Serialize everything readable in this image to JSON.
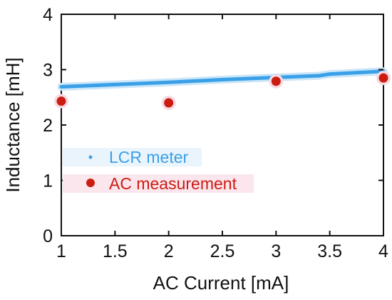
{
  "chart_data": {
    "type": "scatter",
    "xlabel": "AC Current [mA]",
    "ylabel": "Inductance [mH]",
    "xlim": [
      1,
      4
    ],
    "ylim": [
      0,
      4
    ],
    "xticks": [
      "1",
      "1.5",
      "2",
      "2.5",
      "3",
      "3.5",
      "4"
    ],
    "yticks": [
      "0",
      "1",
      "2",
      "3",
      "4"
    ],
    "grid": false,
    "legend_position": "center-left",
    "series": [
      {
        "name": "LCR meter",
        "marker": "line-of-points",
        "color": "#3aa0e8",
        "x": [
          1.0,
          1.5,
          2.0,
          2.5,
          3.0,
          3.4,
          3.5,
          4.0
        ],
        "y": [
          2.69,
          2.73,
          2.77,
          2.82,
          2.86,
          2.89,
          2.92,
          2.97
        ]
      },
      {
        "name": "AC measurement",
        "marker": "circle",
        "color": "#cc1c10",
        "x": [
          1,
          2,
          3,
          4
        ],
        "y": [
          2.43,
          2.4,
          2.79,
          2.85
        ]
      }
    ]
  }
}
